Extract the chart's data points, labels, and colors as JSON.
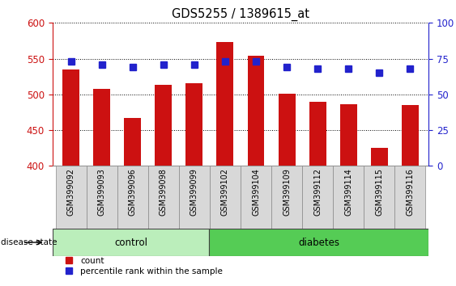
{
  "title": "GDS5255 / 1389615_at",
  "categories": [
    "GSM399092",
    "GSM399093",
    "GSM399096",
    "GSM399098",
    "GSM399099",
    "GSM399102",
    "GSM399104",
    "GSM399109",
    "GSM399112",
    "GSM399114",
    "GSM399115",
    "GSM399116"
  ],
  "counts": [
    535,
    508,
    467,
    513,
    516,
    573,
    554,
    501,
    490,
    486,
    425,
    485
  ],
  "percentile_ranks": [
    73,
    71,
    69,
    71,
    71,
    73,
    73,
    69,
    68,
    68,
    65,
    68
  ],
  "ylim_left": [
    400,
    600
  ],
  "ylim_right": [
    0,
    100
  ],
  "yticks_left": [
    400,
    450,
    500,
    550,
    600
  ],
  "yticks_right": [
    0,
    25,
    50,
    75,
    100
  ],
  "control_count": 5,
  "diabetes_count": 7,
  "bar_color": "#cc1111",
  "dot_color": "#2222cc",
  "control_bg": "#bbeebb",
  "diabetes_bg": "#55cc55",
  "xtick_bg": "#d8d8d8",
  "bar_width": 0.55,
  "ylabel_left_color": "#cc1111",
  "ylabel_right_color": "#2222cc"
}
